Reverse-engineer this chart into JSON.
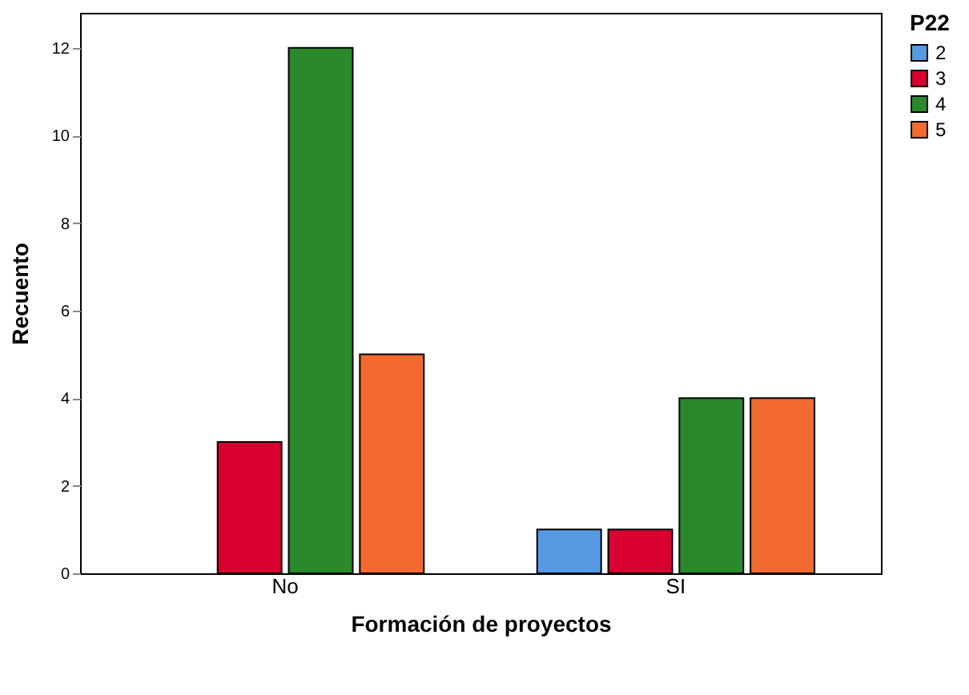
{
  "chart_data": {
    "type": "bar",
    "xlabel": "Formación de proyectos",
    "ylabel": "Recuento",
    "legend_title": "P22",
    "categories": [
      "No",
      "SI"
    ],
    "series": [
      {
        "name": "2",
        "color": "#559ae3",
        "values": [
          null,
          1
        ]
      },
      {
        "name": "3",
        "color": "#d8002f",
        "values": [
          3,
          1
        ]
      },
      {
        "name": "4",
        "color": "#2a8a2b",
        "values": [
          12,
          4
        ]
      },
      {
        "name": "5",
        "color": "#f26a30",
        "values": [
          5,
          4
        ]
      }
    ],
    "ylim": [
      0,
      12.8
    ],
    "yticks": [
      0,
      2,
      4,
      6,
      8,
      10,
      12
    ],
    "grid": false,
    "legend": "top right"
  }
}
